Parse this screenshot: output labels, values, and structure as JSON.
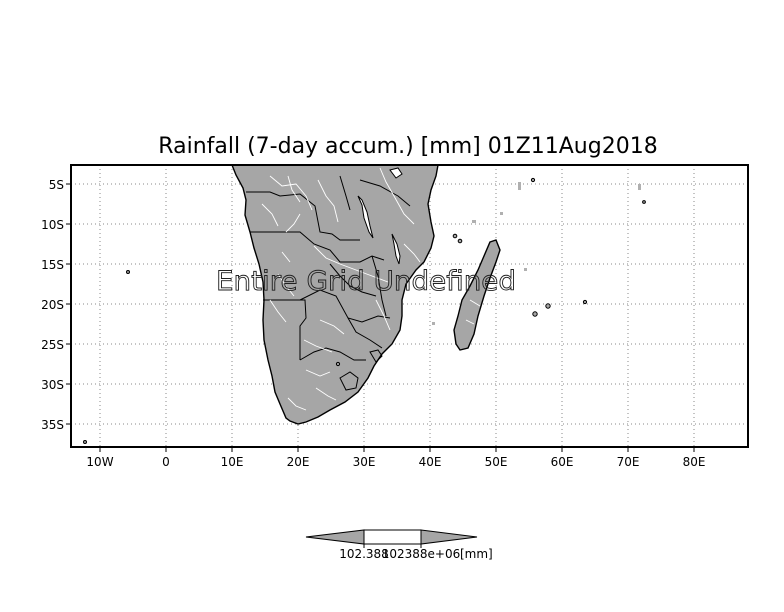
{
  "title": "Rainfall (7-day accum.) [mm] 01Z11Aug2018",
  "overlay_message": "Entire Grid Undefined",
  "lat_labels": [
    "5S",
    "10S",
    "15S",
    "20S",
    "25S",
    "30S",
    "35S"
  ],
  "lon_labels": [
    "10W",
    "0",
    "10E",
    "20E",
    "30E",
    "40E",
    "50E",
    "60E",
    "70E",
    "80E"
  ],
  "colorbar": {
    "value_left": "102.388",
    "value_right": "102388e+06",
    "unit": "[mm]"
  },
  "colors": {
    "land": "#a6a6a6",
    "coast": "#000000",
    "rivers": "#ffffff",
    "grid": "#888888"
  }
}
